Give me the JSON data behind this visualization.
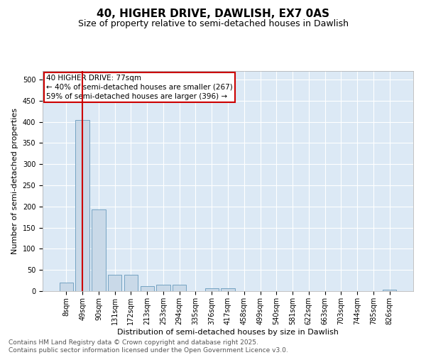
{
  "title": "40, HIGHER DRIVE, DAWLISH, EX7 0AS",
  "subtitle": "Size of property relative to semi-detached houses in Dawlish",
  "xlabel": "Distribution of semi-detached houses by size in Dawlish",
  "ylabel": "Number of semi-detached properties",
  "bins": [
    "8sqm",
    "49sqm",
    "90sqm",
    "131sqm",
    "172sqm",
    "213sqm",
    "253sqm",
    "294sqm",
    "335sqm",
    "376sqm",
    "417sqm",
    "458sqm",
    "499sqm",
    "540sqm",
    "581sqm",
    "622sqm",
    "663sqm",
    "703sqm",
    "744sqm",
    "785sqm",
    "826sqm"
  ],
  "values": [
    20,
    405,
    193,
    38,
    38,
    11,
    15,
    15,
    0,
    7,
    7,
    0,
    0,
    0,
    0,
    0,
    0,
    0,
    0,
    0,
    3
  ],
  "bar_color": "#c9d9e8",
  "bar_edge_color": "#6699bb",
  "vline_x": 1,
  "vline_color": "#cc0000",
  "annotation_line1": "40 HIGHER DRIVE: 77sqm",
  "annotation_line2": "← 40% of semi-detached houses are smaller (267)",
  "annotation_line3": "59% of semi-detached houses are larger (396) →",
  "annotation_box_color": "#cc0000",
  "ylim": [
    0,
    520
  ],
  "yticks": [
    0,
    50,
    100,
    150,
    200,
    250,
    300,
    350,
    400,
    450,
    500
  ],
  "plot_bg_color": "#dce9f5",
  "footer_text": "Contains HM Land Registry data © Crown copyright and database right 2025.\nContains public sector information licensed under the Open Government Licence v3.0.",
  "title_fontsize": 11,
  "subtitle_fontsize": 9,
  "axis_label_fontsize": 8,
  "tick_fontsize": 7,
  "annotation_fontsize": 7.5,
  "footer_fontsize": 6.5
}
